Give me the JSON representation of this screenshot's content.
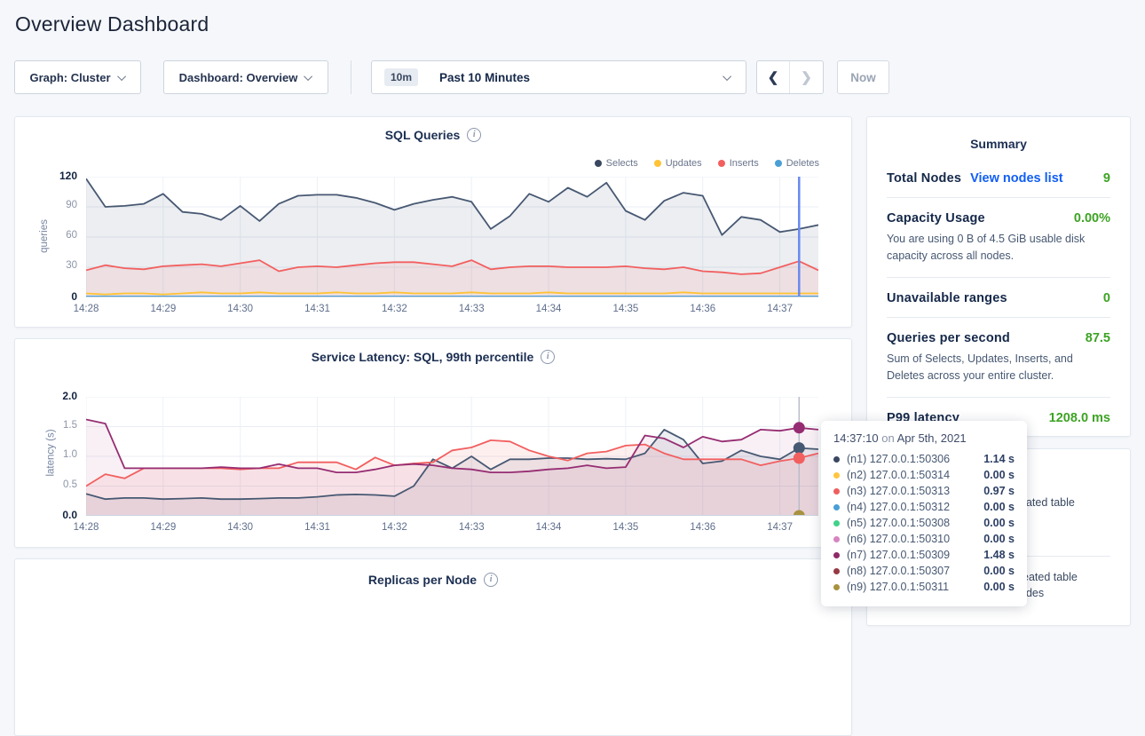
{
  "page": {
    "title": "Overview Dashboard"
  },
  "controls": {
    "graph_dropdown": "Graph: Cluster",
    "dashboard_dropdown": "Dashboard: Overview",
    "time_badge": "10m",
    "time_label": "Past 10 Minutes",
    "prev_label": "❮",
    "next_label": "❯",
    "now_label": "Now"
  },
  "summary": {
    "title": "Summary",
    "total_nodes": {
      "label": "Total Nodes",
      "link": "View nodes list",
      "value": "9"
    },
    "capacity": {
      "label": "Capacity Usage",
      "value": "0.00%",
      "desc": "You are using 0 B of 4.5 GiB usable disk capacity across all nodes."
    },
    "unavailable": {
      "label": "Unavailable ranges",
      "value": "0"
    },
    "qps": {
      "label": "Queries per second",
      "value": "87.5",
      "desc": "Sum of Selects, Updates, Inserts, and Deletes across your entire cluster."
    },
    "p99": {
      "label": "P99 latency",
      "value": "1208.0 ms"
    }
  },
  "events_panel": {
    "fragment_1": "eated table",
    "fragment_2": "eated table",
    "fragment_3": "odes"
  },
  "tooltip": {
    "time": "14:37:10",
    "joiner": "on",
    "date": "Apr 5th, 2021",
    "rows": [
      {
        "label": "(n1) 127.0.0.1:50306",
        "value": "1.14 s",
        "color": "#394860"
      },
      {
        "label": "(n2) 127.0.0.1:50314",
        "value": "0.00 s",
        "color": "#ffc640"
      },
      {
        "label": "(n3) 127.0.0.1:50313",
        "value": "0.97 s",
        "color": "#ef5e5e"
      },
      {
        "label": "(n4) 127.0.0.1:50312",
        "value": "0.00 s",
        "color": "#4a9fd6"
      },
      {
        "label": "(n5) 127.0.0.1:50308",
        "value": "0.00 s",
        "color": "#41d189"
      },
      {
        "label": "(n6) 127.0.0.1:50310",
        "value": "0.00 s",
        "color": "#d884c0"
      },
      {
        "label": "(n7) 127.0.0.1:50309",
        "value": "1.48 s",
        "color": "#8e2a66"
      },
      {
        "label": "(n8) 127.0.0.1:50307",
        "value": "0.00 s",
        "color": "#953a42"
      },
      {
        "label": "(n9) 127.0.0.1:50311",
        "value": "0.00 s",
        "color": "#a8923e"
      }
    ]
  },
  "chart_data": [
    {
      "type": "line",
      "title": "SQL Queries",
      "ylabel": "queries",
      "ylim": [
        0,
        120
      ],
      "y_ticks": [
        {
          "v": 0,
          "label": "0",
          "strong": true
        },
        {
          "v": 30,
          "label": "30",
          "strong": false
        },
        {
          "v": 60,
          "label": "60",
          "strong": false
        },
        {
          "v": 90,
          "label": "90",
          "strong": false
        },
        {
          "v": 120,
          "label": "120",
          "strong": true
        }
      ],
      "x_ticks": [
        "14:28",
        "14:29",
        "14:30",
        "14:31",
        "14:32",
        "14:33",
        "14:34",
        "14:35",
        "14:36",
        "14:37"
      ],
      "point_interval_s": 15,
      "legend": [
        {
          "label": "Selects",
          "color": "#394860"
        },
        {
          "label": "Updates",
          "color": "#ffc333"
        },
        {
          "label": "Inserts",
          "color": "#f25f5f"
        },
        {
          "label": "Deletes",
          "color": "#4a9fd6"
        }
      ],
      "series": [
        {
          "name": "Selects",
          "color": "#475872",
          "fill": "rgba(71,88,114,0.10)",
          "values": [
            118,
            90,
            91,
            93,
            103,
            85,
            83,
            77,
            91,
            76,
            93,
            101,
            102,
            102,
            99,
            94,
            87,
            93,
            97,
            100,
            95,
            68,
            81,
            103,
            95,
            109,
            100,
            114,
            86,
            77,
            96,
            104,
            101,
            62,
            80,
            77,
            65,
            68,
            72
          ]
        },
        {
          "name": "Inserts",
          "color": "#f25f5f",
          "fill": "rgba(242,95,95,0.10)",
          "values": [
            27,
            32,
            29,
            28,
            31,
            32,
            33,
            31,
            34,
            37,
            26,
            30,
            31,
            30,
            32,
            34,
            35,
            35,
            33,
            31,
            37,
            28,
            30,
            31,
            31,
            30,
            30,
            30,
            31,
            29,
            28,
            30,
            26,
            25,
            23,
            24,
            30,
            36,
            27
          ]
        },
        {
          "name": "Updates",
          "color": "#ffc333",
          "values": [
            4,
            3,
            4,
            4,
            3,
            4,
            5,
            4,
            4,
            5,
            4,
            4,
            4,
            5,
            4,
            4,
            5,
            4,
            4,
            4,
            5,
            4,
            4,
            4,
            5,
            4,
            4,
            4,
            4,
            4,
            4,
            5,
            4,
            4,
            4,
            4,
            4,
            4,
            4
          ]
        },
        {
          "name": "Deletes",
          "color": "#4a9fd6",
          "values": [
            1,
            1,
            1,
            1,
            1,
            1,
            1,
            1,
            1,
            1,
            1,
            1,
            1,
            1,
            1,
            1,
            1,
            1,
            1,
            1,
            1,
            1,
            1,
            1,
            1,
            1,
            1,
            1,
            1,
            1,
            1,
            1,
            1,
            1,
            1,
            1,
            1,
            1,
            1
          ]
        }
      ],
      "hover": {
        "index": 37,
        "line_color": "#6889ee",
        "line_width": 2.5,
        "dot_series": []
      }
    },
    {
      "type": "line",
      "title": "Service Latency: SQL, 99th percentile",
      "ylabel": "latency (s)",
      "ylim": [
        0,
        2.0
      ],
      "y_ticks": [
        {
          "v": 0,
          "label": "0.0",
          "strong": true
        },
        {
          "v": 0.5,
          "label": "0.5",
          "strong": false
        },
        {
          "v": 1.0,
          "label": "1.0",
          "strong": false
        },
        {
          "v": 1.5,
          "label": "1.5",
          "strong": false
        },
        {
          "v": 2.0,
          "label": "2.0",
          "strong": true
        }
      ],
      "x_ticks": [
        "14:28",
        "14:29",
        "14:30",
        "14:31",
        "14:32",
        "14:33",
        "14:34",
        "14:35",
        "14:36",
        "14:37"
      ],
      "point_interval_s": 15,
      "series": [
        {
          "name": "n2",
          "color": "#ffc640",
          "values": [
            0,
            0,
            0,
            0,
            0,
            0,
            0,
            0,
            0,
            0,
            0,
            0,
            0,
            0,
            0,
            0,
            0,
            0,
            0,
            0,
            0,
            0,
            0,
            0,
            0,
            0,
            0,
            0,
            0,
            0,
            0,
            0,
            0,
            0,
            0,
            0,
            0,
            0,
            0
          ]
        },
        {
          "name": "n4",
          "color": "#4a9fd6",
          "values": [
            0,
            0,
            0,
            0,
            0,
            0,
            0,
            0,
            0,
            0,
            0,
            0,
            0,
            0,
            0,
            0,
            0,
            0,
            0,
            0,
            0,
            0,
            0,
            0,
            0,
            0,
            0,
            0,
            0,
            0,
            0,
            0,
            0,
            0,
            0,
            0,
            0,
            0,
            0
          ]
        },
        {
          "name": "n5",
          "color": "#41d189",
          "values": [
            0,
            0,
            0,
            0,
            0,
            0,
            0,
            0,
            0,
            0,
            0,
            0,
            0,
            0,
            0,
            0,
            0,
            0,
            0,
            0,
            0,
            0,
            0,
            0,
            0,
            0,
            0,
            0,
            0,
            0,
            0,
            0,
            0,
            0,
            0,
            0,
            0,
            0,
            0
          ]
        },
        {
          "name": "n6",
          "color": "#d884c0",
          "values": [
            0,
            0,
            0,
            0,
            0,
            0,
            0,
            0,
            0,
            0,
            0,
            0,
            0,
            0,
            0,
            0,
            0,
            0,
            0,
            0,
            0,
            0,
            0,
            0,
            0,
            0,
            0,
            0,
            0,
            0,
            0,
            0,
            0,
            0,
            0,
            0,
            0,
            0,
            0
          ]
        },
        {
          "name": "n8",
          "color": "#953a42",
          "values": [
            0,
            0,
            0,
            0,
            0,
            0,
            0,
            0,
            0,
            0,
            0,
            0,
            0,
            0,
            0,
            0,
            0,
            0,
            0,
            0,
            0,
            0,
            0,
            0,
            0,
            0,
            0,
            0,
            0,
            0,
            0,
            0,
            0,
            0,
            0,
            0,
            0,
            0,
            0
          ]
        },
        {
          "name": "n9",
          "color": "#a8923e",
          "values": [
            0,
            0,
            0,
            0,
            0,
            0,
            0,
            0,
            0,
            0,
            0,
            0,
            0,
            0,
            0,
            0,
            0,
            0,
            0,
            0,
            0,
            0,
            0,
            0,
            0,
            0,
            0,
            0,
            0,
            0,
            0,
            0,
            0,
            0,
            0,
            0,
            0,
            0,
            0
          ]
        },
        {
          "name": "n1",
          "color": "#475872",
          "fill": "rgba(71,88,114,0.10)",
          "values": [
            0.37,
            0.28,
            0.3,
            0.3,
            0.28,
            0.29,
            0.3,
            0.28,
            0.28,
            0.29,
            0.3,
            0.3,
            0.32,
            0.35,
            0.36,
            0.35,
            0.33,
            0.5,
            0.95,
            0.8,
            1.0,
            0.78,
            0.95,
            0.95,
            0.97,
            0.97,
            0.95,
            0.96,
            0.95,
            1.05,
            1.45,
            1.28,
            0.88,
            0.92,
            1.1,
            1.0,
            0.95,
            1.14,
            1.12
          ]
        },
        {
          "name": "n3",
          "color": "#f25f5f",
          "fill": "rgba(242,95,95,0.10)",
          "values": [
            0.5,
            0.7,
            0.63,
            0.8,
            0.8,
            0.8,
            0.8,
            0.8,
            0.78,
            0.8,
            0.8,
            0.9,
            0.9,
            0.9,
            0.78,
            0.98,
            0.85,
            0.88,
            0.9,
            1.1,
            1.15,
            1.27,
            1.25,
            1.1,
            1.0,
            0.93,
            1.05,
            1.08,
            1.18,
            1.2,
            1.05,
            0.95,
            0.95,
            0.95,
            0.95,
            0.85,
            0.92,
            0.97,
            1.05
          ]
        },
        {
          "name": "n7",
          "color": "#962d72",
          "fill": "rgba(150,45,114,0.07)",
          "values": [
            1.62,
            1.55,
            0.8,
            0.8,
            0.8,
            0.8,
            0.8,
            0.82,
            0.8,
            0.8,
            0.87,
            0.8,
            0.8,
            0.73,
            0.73,
            0.78,
            0.85,
            0.87,
            0.85,
            0.8,
            0.78,
            0.73,
            0.73,
            0.75,
            0.78,
            0.8,
            0.85,
            0.8,
            0.82,
            1.35,
            1.3,
            1.15,
            1.33,
            1.25,
            1.28,
            1.45,
            1.43,
            1.48,
            1.45
          ]
        }
      ],
      "hover": {
        "index": 37,
        "line_color": "#b9bdc7",
        "line_width": 1.5,
        "dot_series": [
          "n9",
          "n7",
          "n1",
          "n3"
        ]
      }
    },
    {
      "type": "line",
      "title": "Replicas per Node",
      "note_visible_portion": "title only"
    }
  ]
}
